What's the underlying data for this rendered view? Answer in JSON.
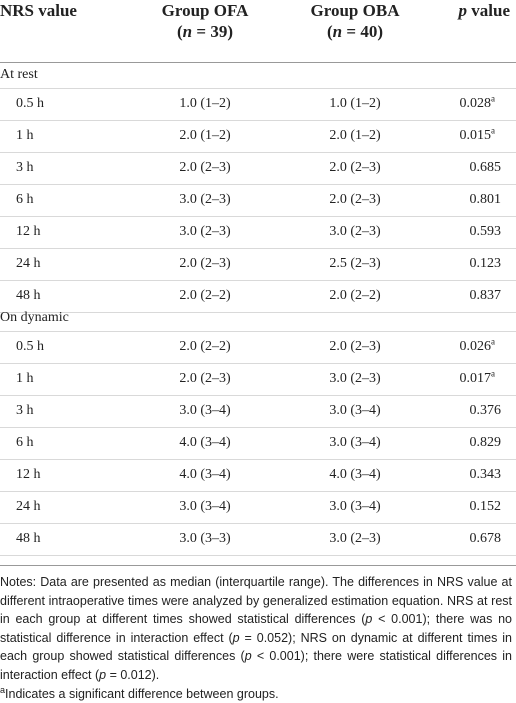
{
  "table": {
    "header": [
      [
        [
          {
            "text": "NRS value"
          }
        ]
      ],
      [
        [
          {
            "text": "Group OFA"
          }
        ],
        [
          {
            "text": "("
          },
          {
            "text": "n",
            "italic": true
          },
          {
            "text": " = 39)"
          }
        ]
      ],
      [
        [
          {
            "text": "Group OBA"
          }
        ],
        [
          {
            "text": "("
          },
          {
            "text": "n",
            "italic": true
          },
          {
            "text": " = 40)"
          }
        ]
      ],
      [
        [
          {
            "text": "p",
            "italic": true
          },
          {
            "text": " value"
          }
        ]
      ]
    ],
    "sections": [
      {
        "title": "At rest",
        "rows": [
          [
            "0.5 h",
            "1.0 (1–2)",
            "1.0 (1–2)",
            {
              "text": "0.028",
              "sup": "a"
            }
          ],
          [
            "1 h",
            "2.0 (1–2)",
            "2.0 (1–2)",
            {
              "text": "0.015",
              "sup": "a"
            }
          ],
          [
            "3 h",
            "2.0 (2–3)",
            "2.0 (2–3)",
            {
              "text": "0.685"
            }
          ],
          [
            "6 h",
            "3.0 (2–3)",
            "2.0 (2–3)",
            {
              "text": "0.801"
            }
          ],
          [
            "12 h",
            "3.0 (2–3)",
            "3.0 (2–3)",
            {
              "text": "0.593"
            }
          ],
          [
            "24 h",
            "2.0 (2–3)",
            "2.5 (2–3)",
            {
              "text": "0.123"
            }
          ],
          [
            "48 h",
            "2.0 (2–2)",
            "2.0 (2–2)",
            {
              "text": "0.837"
            }
          ]
        ]
      },
      {
        "title": "On dynamic",
        "rows": [
          [
            "0.5 h",
            "2.0 (2–2)",
            "2.0 (2–3)",
            {
              "text": "0.026",
              "sup": "a"
            }
          ],
          [
            "1 h",
            "2.0 (2–3)",
            "3.0 (2–3)",
            {
              "text": "0.017",
              "sup": "a"
            }
          ],
          [
            "3 h",
            "3.0 (3–4)",
            "3.0 (3–4)",
            {
              "text": "0.376"
            }
          ],
          [
            "6 h",
            "4.0 (3–4)",
            "3.0 (3–4)",
            {
              "text": "0.829"
            }
          ],
          [
            "12 h",
            "4.0 (3–4)",
            "4.0 (3–4)",
            {
              "text": "0.343"
            }
          ],
          [
            "24 h",
            "3.0 (3–4)",
            "3.0 (3–4)",
            {
              "text": "0.152"
            }
          ],
          [
            "48 h",
            "3.0 (3–3)",
            "3.0 (2–3)",
            {
              "text": "0.678"
            }
          ]
        ]
      }
    ],
    "notes": [
      {
        "text": "Notes: Data are presented as median (interquartile range). The differences in NRS value at different intraoperative times were analyzed by generalized estimation equation. NRS at rest in each group at different times showed statistical differences ("
      },
      {
        "text": "p",
        "italic": true
      },
      {
        "text": " < 0.001); there was no statistical difference in interaction effect ("
      },
      {
        "text": "p",
        "italic": true
      },
      {
        "text": " = 0.052); NRS on dynamic at different times in each group showed statistical differences ("
      },
      {
        "text": "p",
        "italic": true
      },
      {
        "text": " < 0.001); there were statistical differences in interaction effect ("
      },
      {
        "text": "p",
        "italic": true
      },
      {
        "text": " = 0.012)."
      }
    ],
    "footnote": {
      "sup": "a",
      "text": "Indicates a significant difference between groups."
    }
  }
}
